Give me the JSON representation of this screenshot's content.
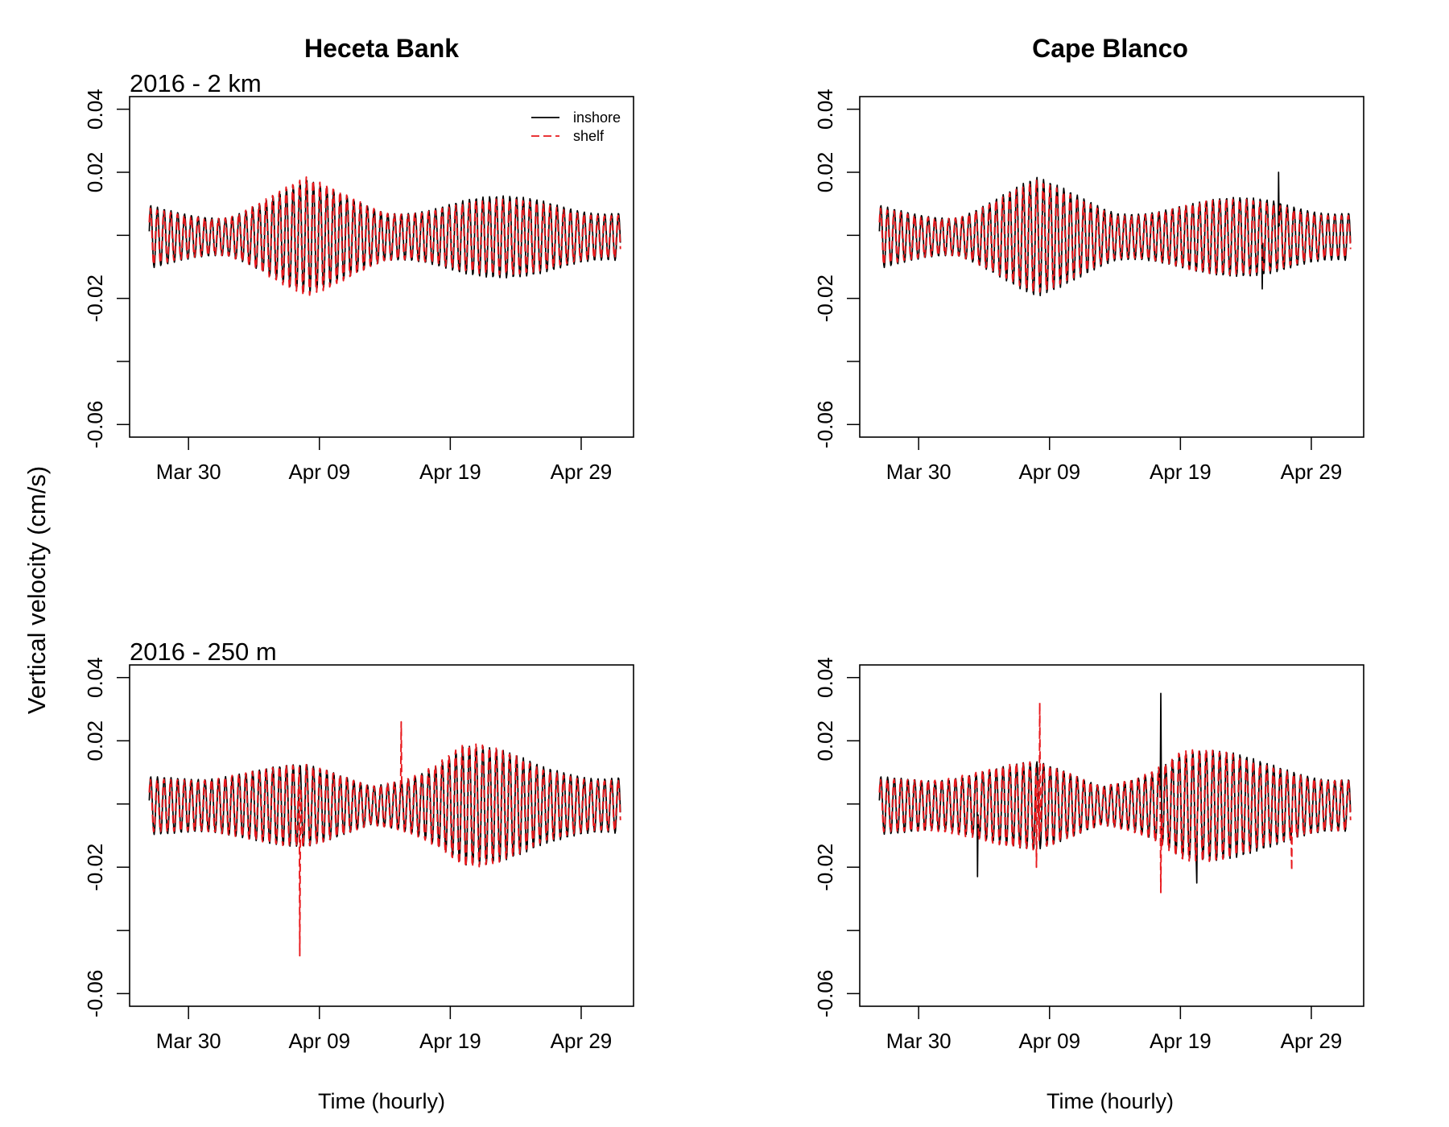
{
  "figure": {
    "column_titles": [
      "Heceta Bank",
      "Cape Blanco"
    ],
    "ylabel": "Vertical velocity (cm/s)",
    "xlabel": "Time (hourly)"
  },
  "colors": {
    "inshore": "#000000",
    "shelf": "#e8191d",
    "axis": "#000000"
  },
  "chart_data": [
    {
      "type": "line",
      "panel": "top-left",
      "site": "Heceta Bank",
      "label": "2016 - 2 km",
      "title": "Heceta Bank",
      "xlabel": "",
      "ylabel": "Vertical velocity (cm/s)",
      "xlim": [
        "2016-03-25T12:00",
        "2016-05-03T00:00"
      ],
      "ylim": [
        -0.064,
        0.044
      ],
      "yticks": [
        0.04,
        0.02,
        -0.02,
        -0.06
      ],
      "yticks_unlabeled": [
        0,
        -0.04
      ],
      "xticks": [
        "Mar 30",
        "Apr 09",
        "Apr 19",
        "Apr 29"
      ],
      "xtick_dates": [
        "2016-03-30",
        "2016-04-09",
        "2016-04-19",
        "2016-04-29"
      ],
      "legend": {
        "position": "top-right",
        "entries": [
          "inshore",
          "shelf"
        ]
      },
      "time_range": [
        "2016-03-27T00:00",
        "2016-05-02T00:00"
      ],
      "series": [
        {
          "name": "inshore",
          "style": "solid",
          "color": "#000000",
          "envelope_amplitude": {
            "dates": [
              "2016-03-27",
              "2016-04-02",
              "2016-04-08",
              "2016-04-14",
              "2016-04-20",
              "2016-04-26",
              "2016-05-02"
            ],
            "values": [
              0.011,
              0.009,
              0.018,
              0.011,
              0.013,
              0.013,
              0.011
            ]
          },
          "spikes": []
        },
        {
          "name": "shelf",
          "style": "dashed",
          "color": "#e8191d",
          "envelope_amplitude": {
            "dates": [
              "2016-03-27",
              "2016-04-02",
              "2016-04-08",
              "2016-04-14",
              "2016-04-20",
              "2016-04-26",
              "2016-05-02"
            ],
            "values": [
              0.01,
              0.009,
              0.019,
              0.011,
              0.012,
              0.012,
              0.01
            ]
          },
          "spikes": []
        }
      ]
    },
    {
      "type": "line",
      "panel": "top-right",
      "site": "Cape Blanco",
      "label": "",
      "title": "Cape Blanco",
      "xlabel": "",
      "ylabel": "",
      "xlim": [
        "2016-03-25T12:00",
        "2016-05-03T00:00"
      ],
      "ylim": [
        -0.064,
        0.044
      ],
      "yticks": [
        0.04,
        0.02,
        -0.02,
        -0.06
      ],
      "yticks_unlabeled": [
        0,
        -0.04
      ],
      "xticks": [
        "Mar 30",
        "Apr 09",
        "Apr 19",
        "Apr 29"
      ],
      "xtick_dates": [
        "2016-03-30",
        "2016-04-09",
        "2016-04-19",
        "2016-04-29"
      ],
      "legend": null,
      "time_range": [
        "2016-03-27T00:00",
        "2016-05-02T00:00"
      ],
      "series": [
        {
          "name": "inshore",
          "style": "solid",
          "color": "#000000",
          "envelope_amplitude": {
            "dates": [
              "2016-03-27",
              "2016-04-02",
              "2016-04-08",
              "2016-04-14",
              "2016-04-20",
              "2016-04-26",
              "2016-05-02"
            ],
            "values": [
              0.011,
              0.009,
              0.019,
              0.011,
              0.012,
              0.013,
              0.011
            ]
          },
          "spikes": [
            {
              "date": "2016-04-26T12:00",
              "value": 0.02
            },
            {
              "date": "2016-04-25T06:00",
              "value": -0.017
            }
          ]
        },
        {
          "name": "shelf",
          "style": "dashed",
          "color": "#e8191d",
          "envelope_amplitude": {
            "dates": [
              "2016-03-27",
              "2016-04-02",
              "2016-04-08",
              "2016-04-14",
              "2016-04-20",
              "2016-04-26",
              "2016-05-02"
            ],
            "values": [
              0.01,
              0.009,
              0.018,
              0.01,
              0.012,
              0.012,
              0.01
            ]
          },
          "spikes": []
        }
      ]
    },
    {
      "type": "line",
      "panel": "bottom-left",
      "site": "Heceta Bank",
      "label": "2016 - 250 m",
      "title": "",
      "xlabel": "Time (hourly)",
      "ylabel": "Vertical velocity (cm/s)",
      "xlim": [
        "2016-03-25T12:00",
        "2016-05-03T00:00"
      ],
      "ylim": [
        -0.064,
        0.044
      ],
      "yticks": [
        0.04,
        0.02,
        -0.02,
        -0.06
      ],
      "yticks_unlabeled": [
        0,
        -0.04
      ],
      "xticks": [
        "Mar 30",
        "Apr 09",
        "Apr 19",
        "Apr 29"
      ],
      "xtick_dates": [
        "2016-03-30",
        "2016-04-09",
        "2016-04-19",
        "2016-04-29"
      ],
      "legend": null,
      "time_range": [
        "2016-03-27T00:00",
        "2016-05-02T00:00"
      ],
      "series": [
        {
          "name": "inshore",
          "style": "solid",
          "color": "#000000",
          "envelope_amplitude": {
            "dates": [
              "2016-03-27",
              "2016-04-02",
              "2016-04-08",
              "2016-04-13",
              "2016-04-20",
              "2016-04-26",
              "2016-05-02"
            ],
            "values": [
              0.01,
              0.014,
              0.013,
              0.008,
              0.021,
              0.014,
              0.013
            ]
          },
          "spikes": []
        },
        {
          "name": "shelf",
          "style": "dashed",
          "color": "#e8191d",
          "envelope_amplitude": {
            "dates": [
              "2016-03-27",
              "2016-04-02",
              "2016-04-08",
              "2016-04-13",
              "2016-04-20",
              "2016-04-26",
              "2016-05-02"
            ],
            "values": [
              0.009,
              0.014,
              0.013,
              0.008,
              0.022,
              0.013,
              0.012
            ]
          },
          "spikes": [
            {
              "date": "2016-04-07T12:00",
              "value": -0.048
            },
            {
              "date": "2016-04-15T06:00",
              "value": 0.026
            }
          ]
        }
      ]
    },
    {
      "type": "line",
      "panel": "bottom-right",
      "site": "Cape Blanco",
      "label": "",
      "title": "",
      "xlabel": "Time (hourly)",
      "ylabel": "",
      "xlim": [
        "2016-03-25T12:00",
        "2016-05-03T00:00"
      ],
      "ylim": [
        -0.064,
        0.044
      ],
      "yticks": [
        0.04,
        0.02,
        -0.02,
        -0.06
      ],
      "yticks_unlabeled": [
        0,
        -0.04
      ],
      "xticks": [
        "Mar 30",
        "Apr 09",
        "Apr 19",
        "Apr 29"
      ],
      "xtick_dates": [
        "2016-03-30",
        "2016-04-09",
        "2016-04-19",
        "2016-04-29"
      ],
      "legend": null,
      "time_range": [
        "2016-03-27T00:00",
        "2016-05-02T00:00"
      ],
      "series": [
        {
          "name": "inshore",
          "style": "solid",
          "color": "#000000",
          "envelope_amplitude": {
            "dates": [
              "2016-03-27",
              "2016-04-02",
              "2016-04-08",
              "2016-04-13",
              "2016-04-19",
              "2016-04-25",
              "2016-05-02"
            ],
            "values": [
              0.01,
              0.013,
              0.014,
              0.008,
              0.02,
              0.015,
              0.012
            ]
          },
          "spikes": [
            {
              "date": "2016-04-17T12:00",
              "value": 0.035
            },
            {
              "date": "2016-04-03T12:00",
              "value": -0.023
            },
            {
              "date": "2016-04-20T06:00",
              "value": -0.025
            }
          ]
        },
        {
          "name": "shelf",
          "style": "dashed",
          "color": "#e8191d",
          "envelope_amplitude": {
            "dates": [
              "2016-03-27",
              "2016-04-02",
              "2016-04-08",
              "2016-04-13",
              "2016-04-19",
              "2016-04-25",
              "2016-05-02"
            ],
            "values": [
              0.009,
              0.014,
              0.014,
              0.008,
              0.021,
              0.014,
              0.012
            ]
          },
          "spikes": [
            {
              "date": "2016-04-08T06:00",
              "value": 0.032
            },
            {
              "date": "2016-04-08T00:00",
              "value": -0.02
            },
            {
              "date": "2016-04-17T12:00",
              "value": -0.028
            },
            {
              "date": "2016-04-27T12:00",
              "value": -0.021
            }
          ]
        }
      ]
    }
  ]
}
